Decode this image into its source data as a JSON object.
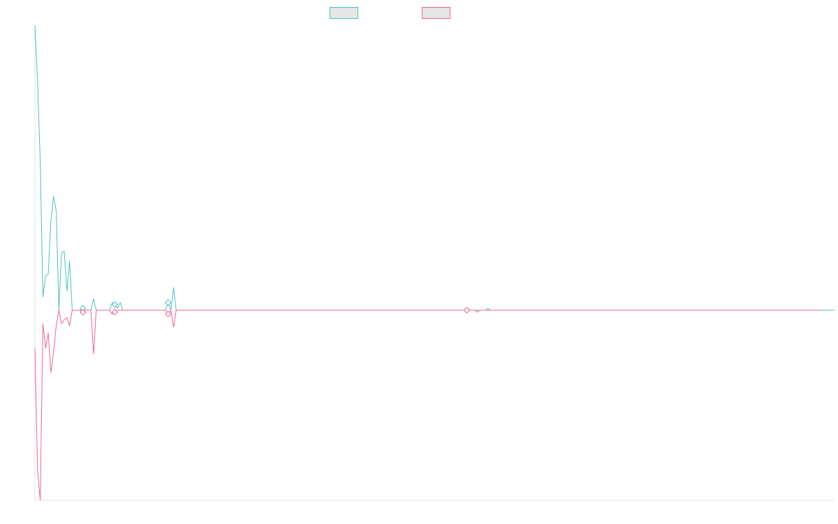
{
  "chart_data": {
    "type": "line",
    "title": "",
    "xlabel": "",
    "ylabel": "",
    "grid": false,
    "legend": {
      "position": "top-center",
      "show_labels": false
    },
    "xlim": [
      0,
      300
    ],
    "ylim": [
      -1,
      1.5
    ],
    "series": [
      {
        "color": "#4bc0c0",
        "values": [
          1.5,
          1.2,
          0.78,
          0.07,
          0.18,
          0.19,
          0.47,
          0.6,
          0.52,
          0.0,
          0.3,
          0.31,
          0.1,
          0.26,
          0.0,
          0.0,
          0.0,
          0.0,
          0.01,
          0.0,
          0.0,
          0.0,
          0.06,
          0.0,
          0.0,
          0.0,
          0.0,
          0.0,
          0.0,
          0.04,
          0.03,
          0.01,
          0.04,
          0.0,
          0.0,
          0.0,
          0.0,
          0.0,
          0.0,
          0.0,
          0.0,
          0.0,
          0.0,
          0.0,
          0.0,
          0.0,
          0.0,
          0.0,
          0.0,
          0.0,
          0.04,
          0.0,
          0.12,
          0.0,
          0.0,
          0.0,
          0.0,
          0.0,
          0.0,
          0.0,
          0.0,
          0.0,
          0.0,
          0.0,
          0.0,
          0.0,
          0.0,
          0.0,
          0.0,
          0.0,
          0.0,
          0.0,
          0.0,
          0.0,
          0.0,
          0.0,
          0.0,
          0.0,
          0.0,
          0.0,
          0.0,
          0.0,
          0.0,
          0.0,
          0.0,
          0.0,
          0.0,
          0.0,
          0.0,
          0.0,
          0.0,
          0.0,
          0.0,
          0.0,
          0.0,
          0.0,
          0.0,
          0.0,
          0.0,
          0.0,
          0.0,
          0.0,
          0.0,
          0.0,
          0.0,
          0.0,
          0.0,
          0.0,
          0.0,
          0.0,
          0.0,
          0.0,
          0.0,
          0.0,
          0.0,
          0.0,
          0.0,
          0.0,
          0.0,
          0.0,
          0.0,
          0.0,
          0.0,
          0.0,
          0.0,
          0.0,
          0.0,
          0.0,
          0.0,
          0.0,
          0.0,
          0.0,
          0.0,
          0.0,
          0.0,
          0.0,
          0.0,
          0.0,
          0.0,
          0.0,
          0.0,
          0.0,
          0.0,
          0.0,
          0.0,
          0.0,
          0.0,
          0.0,
          0.0,
          0.0,
          0.0,
          0.0,
          0.0,
          0.0,
          0.0,
          0.0,
          0.0,
          0.0,
          0.0,
          0.0,
          0.0,
          0.0,
          0.0,
          0.0,
          0.0,
          0.0,
          0.0,
          0.0,
          0.0,
          0.0,
          0.01,
          0.0,
          0.0,
          0.0,
          0.0,
          0.0,
          0.0,
          0.0,
          0.0,
          0.0,
          0.0,
          0.0,
          0.0,
          0.0,
          0.0,
          0.0,
          0.0,
          0.0,
          0.0,
          0.0,
          0.0,
          0.0,
          0.0,
          0.0,
          0.0,
          0.0,
          0.0,
          0.0,
          0.0,
          0.0,
          0.0,
          0.0,
          0.0,
          0.0,
          0.0,
          0.0,
          0.0,
          0.0,
          0.0,
          0.0,
          0.0,
          0.0,
          0.0,
          0.0,
          0.0,
          0.0,
          0.0,
          0.0,
          0.0,
          0.0,
          0.0,
          0.0,
          0.0,
          0.0,
          0.0,
          0.0,
          0.0,
          0.0,
          0.0,
          0.0,
          0.0,
          0.0,
          0.0,
          0.0,
          0.0,
          0.0,
          0.0,
          0.0,
          0.0,
          0.0,
          0.0,
          0.0,
          0.0,
          0.0,
          0.0,
          0.0,
          0.0,
          0.0,
          0.0,
          0.0,
          0.0,
          0.0,
          0.0,
          0.0,
          0.0,
          0.0,
          0.0,
          0.0,
          0.0,
          0.0,
          0.0,
          0.0,
          0.0,
          0.0,
          0.0,
          0.0,
          0.0,
          0.0,
          0.0,
          0.0,
          0.0,
          0.0,
          0.0,
          0.0,
          0.0,
          0.0,
          0.0,
          0.0,
          0.0,
          0.0,
          0.0,
          0.0,
          0.0,
          0.0,
          0.0,
          0.0,
          0.0,
          0.0,
          0.0,
          0.0,
          0.0,
          0.0,
          0.0,
          0.0,
          0.0,
          0.0,
          0.0,
          0.0,
          0.0,
          0.0,
          0.0
        ]
      },
      {
        "color": "#f0648c",
        "values": [
          -0.2,
          -0.85,
          -1.0,
          -0.07,
          -0.2,
          -0.12,
          -0.33,
          -0.22,
          -0.08,
          0.0,
          -0.07,
          -0.05,
          -0.04,
          -0.08,
          0.0,
          0.0,
          0.0,
          0.0,
          -0.01,
          0.0,
          0.0,
          0.0,
          -0.23,
          0.0,
          0.0,
          0.0,
          0.0,
          0.0,
          0.0,
          -0.02,
          -0.01,
          0.0,
          0.0,
          0.0,
          0.0,
          0.0,
          0.0,
          0.0,
          0.0,
          0.0,
          0.0,
          0.0,
          0.0,
          0.0,
          0.0,
          0.0,
          0.0,
          0.0,
          0.0,
          0.0,
          -0.02,
          0.0,
          -0.09,
          0.0,
          0.0,
          0.0,
          0.0,
          0.0,
          0.0,
          0.0,
          0.0,
          0.0,
          0.0,
          0.0,
          0.0,
          0.0,
          0.0,
          0.0,
          0.0,
          0.0,
          0.0,
          0.0,
          0.0,
          0.0,
          0.0,
          0.0,
          0.0,
          0.0,
          0.0,
          0.0,
          0.0,
          0.0,
          0.0,
          0.0,
          0.0,
          0.0,
          0.0,
          0.0,
          0.0,
          0.0,
          0.0,
          0.0,
          0.0,
          0.0,
          0.0,
          0.0,
          0.0,
          0.0,
          0.0,
          0.0,
          0.0,
          0.0,
          0.0,
          0.0,
          0.0,
          0.0,
          0.0,
          0.0,
          0.0,
          0.0,
          0.0,
          0.0,
          0.0,
          0.0,
          0.0,
          0.0,
          0.0,
          0.0,
          0.0,
          0.0,
          0.0,
          0.0,
          0.0,
          0.0,
          0.0,
          0.0,
          0.0,
          0.0,
          0.0,
          0.0,
          0.0,
          0.0,
          0.0,
          0.0,
          0.0,
          0.0,
          0.0,
          0.0,
          0.0,
          0.0,
          0.0,
          0.0,
          0.0,
          0.0,
          0.0,
          0.0,
          0.0,
          0.0,
          0.0,
          0.0,
          0.0,
          0.0,
          0.0,
          0.0,
          0.0,
          0.0,
          0.0,
          0.0,
          0.0,
          0.0,
          0.0,
          0.0,
          0.0,
          0.0,
          0.0,
          0.0,
          -0.01,
          0.0,
          0.0,
          0.0,
          0.0,
          0.0,
          0.0,
          0.0,
          0.0,
          0.0,
          0.0,
          0.0,
          0.0,
          0.0,
          0.0,
          0.0,
          0.0,
          0.0,
          0.0,
          0.0,
          0.0,
          0.0,
          0.0,
          0.0,
          0.0,
          0.0,
          0.0,
          0.0,
          0.0,
          0.0,
          0.0,
          0.0,
          0.0,
          0.0,
          0.0,
          0.0,
          0.0,
          0.0,
          0.0,
          0.0,
          0.0,
          0.0,
          0.0,
          0.0,
          0.0,
          0.0,
          0.0,
          0.0,
          0.0,
          0.0,
          0.0,
          0.0,
          0.0,
          0.0,
          0.0,
          0.0,
          0.0,
          0.0,
          0.0,
          0.0,
          0.0,
          0.0,
          0.0,
          0.0,
          0.0,
          0.0,
          0.0,
          0.0,
          0.0,
          0.0,
          0.0,
          0.0,
          0.0,
          0.0,
          0.0,
          0.0,
          0.0,
          0.0,
          0.0,
          0.0,
          0.0,
          0.0,
          0.0,
          0.0,
          0.0,
          0.0,
          0.0,
          0.0,
          0.0,
          0.0,
          0.0,
          0.0,
          0.0,
          0.0,
          0.0,
          0.0,
          0.0,
          0.0,
          0.0,
          0.0,
          0.0,
          0.0,
          0.0,
          0.0,
          0.0,
          0.0,
          0.0,
          0.0,
          0.0,
          0.0,
          0.0,
          0.0,
          0.0,
          0.0,
          0.0,
          0.0,
          0.0,
          0.0,
          0.0,
          0.0,
          0.0,
          0.0,
          0.0,
          0.0,
          0.0,
          0.0,
          0.0,
          0.0,
          0.0,
          0.0
        ]
      }
    ],
    "point_markers": [
      {
        "series": 0,
        "index": 18
      },
      {
        "series": 1,
        "index": 18
      },
      {
        "series": 0,
        "index": 30
      },
      {
        "series": 1,
        "index": 30
      },
      {
        "series": 0,
        "index": 50
      },
      {
        "series": 1,
        "index": 50
      },
      {
        "series": 0,
        "index": 162
      },
      {
        "series": 1,
        "index": 162
      }
    ],
    "legend_fill": "#e6e6e6"
  }
}
